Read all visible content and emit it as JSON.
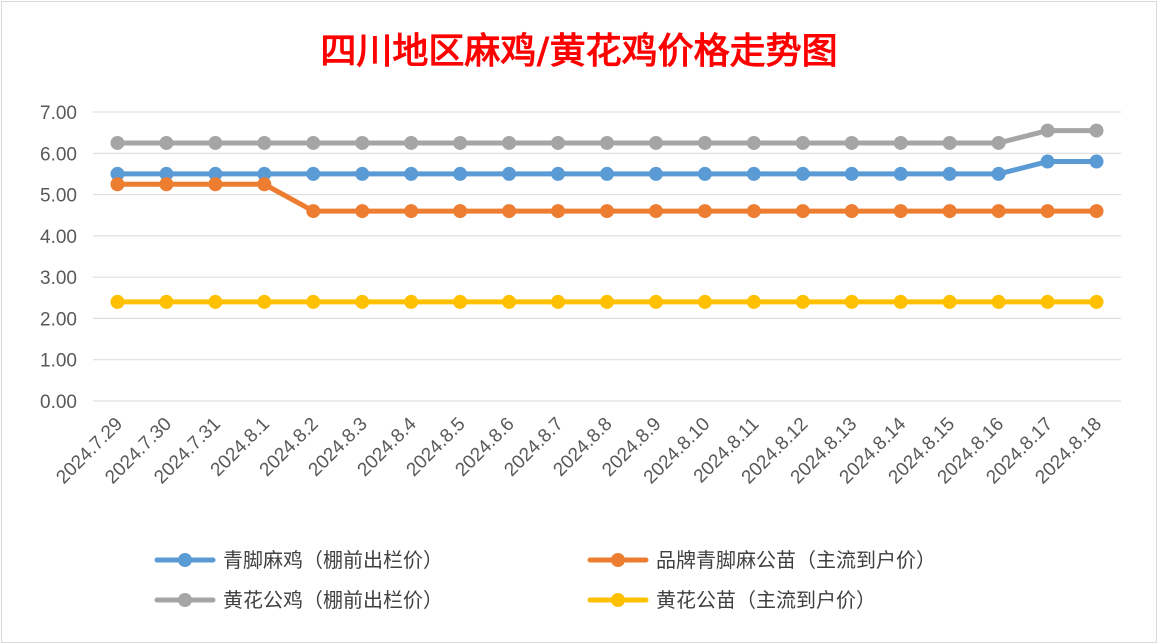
{
  "chart_data": {
    "type": "line",
    "title": "四川地区麻鸡/黄花鸡价格走势图",
    "categories": [
      "2024.7.29",
      "2024.7.30",
      "2024.7.31",
      "2024.8.1",
      "2024.8.2",
      "2024.8.3",
      "2024.8.4",
      "2024.8.5",
      "2024.8.6",
      "2024.8.7",
      "2024.8.8",
      "2024.8.9",
      "2024.8.10",
      "2024.8.11",
      "2024.8.12",
      "2024.8.13",
      "2024.8.14",
      "2024.8.15",
      "2024.8.16",
      "2024.8.17",
      "2024.8.18"
    ],
    "y_ticks": [
      "0.00",
      "1.00",
      "2.00",
      "3.00",
      "4.00",
      "5.00",
      "6.00",
      "7.00"
    ],
    "ylim": [
      0,
      7
    ],
    "grid": true,
    "legend_position": "bottom",
    "series": [
      {
        "name": "青脚麻鸡（棚前出栏价）",
        "color": "#5b9bd5",
        "values": [
          5.5,
          5.5,
          5.5,
          5.5,
          5.5,
          5.5,
          5.5,
          5.5,
          5.5,
          5.5,
          5.5,
          5.5,
          5.5,
          5.5,
          5.5,
          5.5,
          5.5,
          5.5,
          5.5,
          5.8,
          5.8
        ]
      },
      {
        "name": "品牌青脚麻公苗（主流到户价）",
        "color": "#ed7d31",
        "values": [
          5.25,
          5.25,
          5.25,
          5.25,
          4.6,
          4.6,
          4.6,
          4.6,
          4.6,
          4.6,
          4.6,
          4.6,
          4.6,
          4.6,
          4.6,
          4.6,
          4.6,
          4.6,
          4.6,
          4.6,
          4.6
        ]
      },
      {
        "name": "黄花公鸡（棚前出栏价）",
        "color": "#a5a5a5",
        "values": [
          6.25,
          6.25,
          6.25,
          6.25,
          6.25,
          6.25,
          6.25,
          6.25,
          6.25,
          6.25,
          6.25,
          6.25,
          6.25,
          6.25,
          6.25,
          6.25,
          6.25,
          6.25,
          6.25,
          6.55,
          6.55
        ]
      },
      {
        "name": "黄花公苗（主流到户价）",
        "color": "#ffc000",
        "values": [
          2.4,
          2.4,
          2.4,
          2.4,
          2.4,
          2.4,
          2.4,
          2.4,
          2.4,
          2.4,
          2.4,
          2.4,
          2.4,
          2.4,
          2.4,
          2.4,
          2.4,
          2.4,
          2.4,
          2.4,
          2.4
        ]
      }
    ]
  }
}
